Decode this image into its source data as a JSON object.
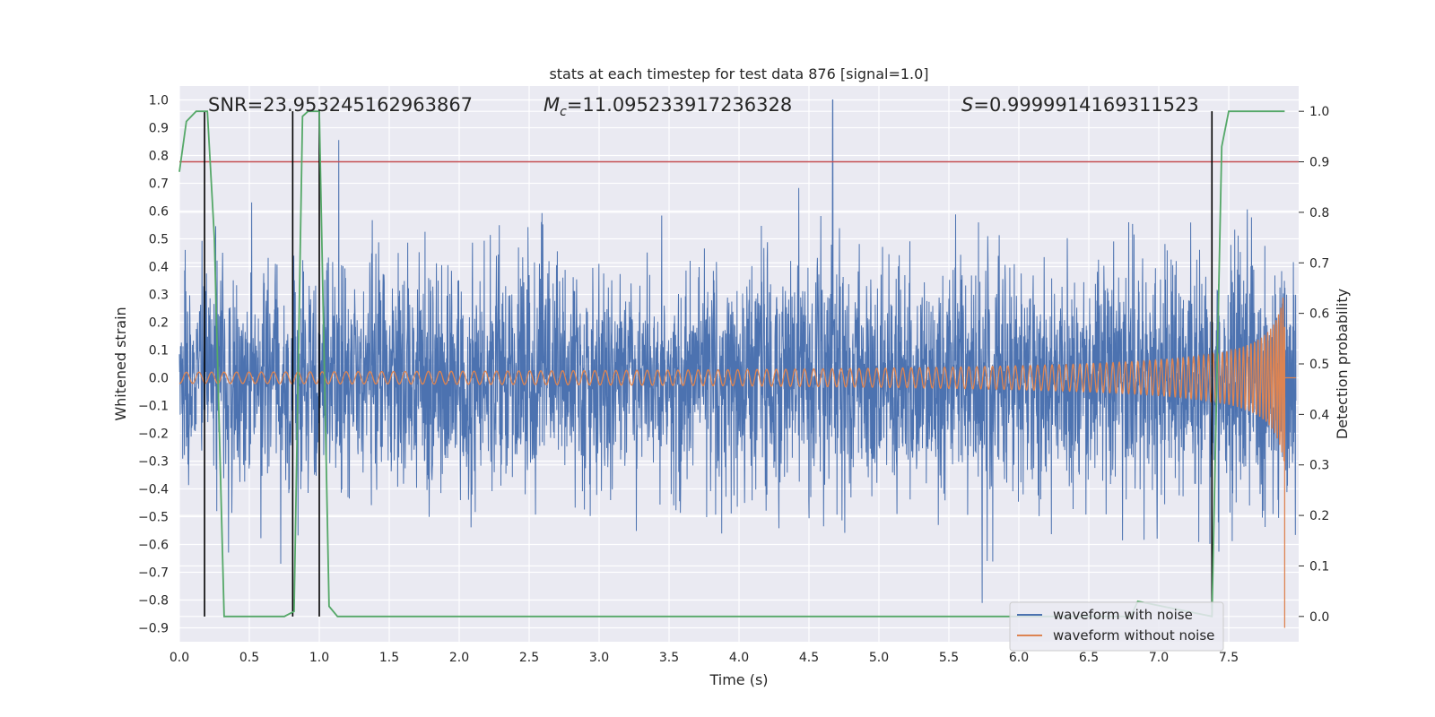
{
  "chart_data": {
    "type": "line",
    "title": "stats at each timestep for test data 876 [signal=1.0]",
    "xlabel": "Time (s)",
    "ylabel_left": "Whitened strain",
    "ylabel_right": "Detection probability",
    "xlim": [
      0.0,
      8.0
    ],
    "ylim_left": [
      -0.95,
      1.05
    ],
    "ylim_right": [
      -0.05,
      1.05
    ],
    "x_ticks": [
      "0.0",
      "0.5",
      "1.0",
      "1.5",
      "2.0",
      "2.5",
      "3.0",
      "3.5",
      "4.0",
      "4.5",
      "5.0",
      "5.5",
      "6.0",
      "6.5",
      "7.0",
      "7.5"
    ],
    "y_ticks_left": [
      "1.0",
      "0.9",
      "0.8",
      "0.7",
      "0.6",
      "0.5",
      "0.4",
      "0.3",
      "0.2",
      "0.1",
      "0.0",
      "−0.1",
      "−0.2",
      "−0.3",
      "−0.4",
      "−0.5",
      "−0.6",
      "−0.7",
      "−0.8",
      "−0.9"
    ],
    "y_ticks_right": [
      "1.0",
      "0.9",
      "0.8",
      "0.7",
      "0.6",
      "0.5",
      "0.4",
      "0.3",
      "0.2",
      "0.1",
      "0.0"
    ],
    "grid": true,
    "legend_position": "bottom-right",
    "annotations": {
      "snr": "SNR=23.953245162963867",
      "mc_symbol": "M",
      "mc_sub": "c",
      "mc_value": "=11.095233917236328",
      "s_symbol": "S",
      "s_value": "=0.9999914169311523"
    },
    "colors": {
      "noise": "#4c72b0",
      "clean": "#dd8452",
      "probability": "#55a868",
      "threshold": "#c44e52",
      "markers": "#000000",
      "background": "#eaeaf2",
      "grid": "#ffffff"
    },
    "series": [
      {
        "name": "waveform with noise",
        "axis": "left",
        "description_values": {
          "amplitude_range": [
            -0.86,
            1.0
          ],
          "spike_time": 4.67
        }
      },
      {
        "name": "waveform without noise",
        "axis": "left",
        "chirp": {
          "start": 0.0,
          "end": 7.9,
          "start_amplitude": 0.02,
          "end_amplitude": 0.6,
          "min_value": -0.9
        }
      },
      {
        "name": "detection probability",
        "axis": "right",
        "x": [
          0.0,
          0.05,
          0.12,
          0.2,
          0.25,
          0.32,
          0.75,
          0.82,
          0.88,
          0.92,
          1.0,
          1.07,
          1.13,
          6.8,
          6.85,
          7.38,
          7.45,
          7.5,
          7.9
        ],
        "y": [
          0.88,
          0.98,
          1.0,
          1.0,
          0.75,
          0.0,
          0.0,
          0.01,
          0.99,
          1.0,
          1.0,
          0.02,
          0.0,
          0.0,
          0.03,
          0.0,
          0.93,
          1.0,
          1.0
        ]
      }
    ],
    "threshold_right": 0.9,
    "vertical_markers": [
      0.18,
      0.81,
      1.0,
      7.38
    ]
  }
}
